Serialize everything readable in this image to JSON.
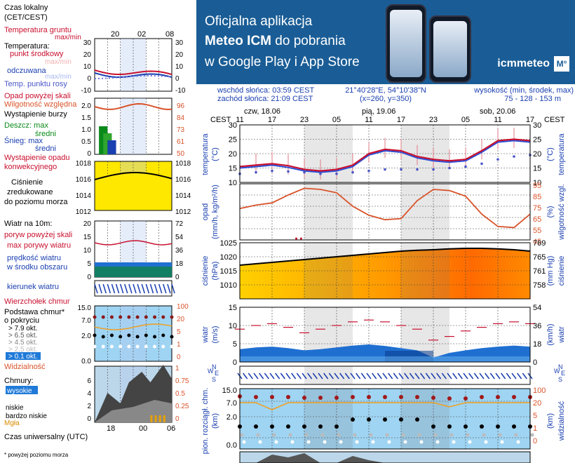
{
  "banner": {
    "line1": "Oficjalna aplikacja",
    "line2_bold": "Meteo ICM",
    "line2_rest": " do pobrania",
    "line3": "w Google Play i App Store",
    "brand": "icmmeteo",
    "badge": "M°"
  },
  "header": {
    "sunrise": "wschód słońca: 03:59 CEST",
    "sunset": "zachód słońca: 21:09 CEST",
    "coords": "21°40'28\"E, 54°10'38\"N",
    "grid": "(x=260, y=350)",
    "alt_label": "wysokość (min, środek, max)",
    "alt_values": "75 - 128 - 153 m"
  },
  "time_axis": {
    "zone": "CEST",
    "days": [
      "czw, 18.06",
      "pią, 19.06",
      "sob, 20.06"
    ],
    "hours": [
      "11",
      "17",
      "23",
      "05",
      "11",
      "17",
      "23",
      "05",
      "11",
      "17"
    ]
  },
  "legend": {
    "local_time": [
      "Czas lokalny",
      "(CET/CEST)"
    ],
    "local_hours": [
      "20",
      "02",
      "08"
    ],
    "soil_temp": [
      "Temperatura gruntu",
      "max/min"
    ],
    "temp_title": "Temperatura:",
    "temp_mid": "punkt środkowy",
    "temp_max_min": "max/min",
    "temp_feel": "odczuwana",
    "temp_feel_max_min": "max/min",
    "temp_dew": "Temp. punktu rosy",
    "temp_ticks": [
      "30",
      "20",
      "10",
      "0",
      "-10"
    ],
    "precip_over": "Opad powyżej skali",
    "humidity": "Wilgotność względna",
    "storm": "Wystąpienie burzy",
    "rain_max": "Deszcz: max",
    "rain_mid": "średni",
    "snow_max": "Śnieg: max",
    "snow_mid": "średni",
    "precip_event": [
      "Wystąpienie opadu",
      "konwekcyjnego"
    ],
    "precip_ticks": [
      "2.0",
      "1.5",
      "1.0",
      "0.5",
      "0"
    ],
    "hum_ticks": [
      "96",
      "84",
      "73",
      "61",
      "50"
    ],
    "pressure_title": [
      "Ciśnienie",
      "zredukowane",
      "do poziomu morza"
    ],
    "pressure_ticks": [
      "1018",
      "1016",
      "1014",
      "1012"
    ],
    "wind_title": "Wiatr na 10m:",
    "wind_gust_over": "poryw powyżej skali",
    "wind_gust_max": "max porywy wiatru",
    "wind_avg": [
      "prędkość wiatru",
      "w środku obszaru"
    ],
    "wind_ticks_ms": [
      "20",
      "15",
      "10",
      "5",
      "0"
    ],
    "wind_ticks_kmh": [
      "72",
      "54",
      "36",
      "18",
      "0"
    ],
    "wind_dir": "kierunek wiatru",
    "cloud_top": "Wierzchołek chmur",
    "cloud_base": [
      "Podstawa chmur*",
      "o pokryciu"
    ],
    "okt": [
      "> 7.9 okt.",
      "> 6.5 okt.",
      "> 4.5 okt.",
      "> 2.5 okt.",
      "> 0.1 okt."
    ],
    "cloud_ticks": [
      "15.0",
      "7.0",
      "2.0",
      "0.0"
    ],
    "cloud_top_ticks": [
      "100",
      "20",
      "5",
      "1",
      "0"
    ],
    "visibility": "Widzialność",
    "clouds_title": "Chmury:",
    "clouds_levels": [
      "wysokie",
      "średnie",
      "niskie",
      "bardzo niskie"
    ],
    "fog": "Mgła",
    "clouds_ticks": [
      "6",
      "4",
      "2",
      "0"
    ],
    "clouds_ticks_r": [
      "1",
      "0.75",
      "0.5",
      "0.25",
      "0"
    ],
    "utc": "Czas uniwersalny (UTC)",
    "utc_hours": [
      "18",
      "00",
      "06"
    ],
    "footnote": "* powyżej poziomu morza"
  },
  "panels": {
    "temp": {
      "ylabel": "temperatura",
      "unit": "(°C)",
      "ticks": [
        "30",
        "25",
        "20",
        "15",
        "10"
      ],
      "ylim": [
        10,
        30
      ]
    },
    "precip": {
      "ylabel": "opad",
      "unit": "(mm/h, kg/m²/h)",
      "ylabel_r": "wilgotność wzgl.",
      "unit_r": "(%)",
      "ticks_r": [
        "95",
        "85",
        "75",
        "65",
        "55",
        "45"
      ]
    },
    "pressure": {
      "ylabel": "ciśnienie",
      "unit": "(hPa)",
      "ylabel_r": "ciśnienie",
      "unit_r": "(mm Hg)",
      "ticks": [
        "1025",
        "1020",
        "1015",
        "1010"
      ],
      "ticks_r": [
        "769",
        "765",
        "761",
        "758"
      ],
      "ylim": [
        1005,
        1025
      ]
    },
    "wind": {
      "ylabel": "wiatr",
      "unit": "(m/s)",
      "unit_r": "(km/h)",
      "ticks": [
        "15",
        "10",
        "5",
        "0"
      ],
      "ticks_r": [
        "54",
        "36",
        "18",
        "0"
      ]
    },
    "wind_dir_letters": [
      "W",
      "N",
      "E",
      "S"
    ],
    "cloud": {
      "ylabel": "pion. rozciągł. chm.",
      "unit": "(km)",
      "ylabel_r": "widzialność",
      "unit_r": "(km)",
      "ticks": [
        "15.0",
        "7.0",
        "2.0",
        "0.0"
      ],
      "ticks_r": [
        "100",
        "20",
        "5",
        "1",
        "0"
      ]
    }
  },
  "chart_data": [
    {
      "type": "line",
      "title": "temperatura",
      "ylabel": "(°C)",
      "ylim": [
        10,
        30
      ],
      "x": [
        "11",
        "14",
        "17",
        "20",
        "23",
        "02",
        "05",
        "08",
        "11",
        "14",
        "17",
        "20",
        "23",
        "02",
        "05",
        "08",
        "11",
        "14",
        "17"
      ],
      "series": [
        {
          "name": "punkt środkowy",
          "values": [
            15.5,
            16,
            16.5,
            15.8,
            14.5,
            14,
            14.5,
            16,
            20,
            21.5,
            21,
            19,
            18,
            17.5,
            18,
            21,
            24.5,
            25,
            24.5
          ]
        },
        {
          "name": "odczuwana",
          "values": [
            15,
            15.5,
            16,
            15.2,
            14,
            13.5,
            14,
            15.5,
            19.5,
            21,
            20.5,
            18.5,
            17.5,
            17,
            17.5,
            20.5,
            24,
            24.5,
            24
          ]
        },
        {
          "name": "Temp. punktu rosy",
          "values": [
            13,
            13.5,
            14,
            13.8,
            13.5,
            13,
            13,
            13.5,
            14,
            14.5,
            14.5,
            14.5,
            14.5,
            15,
            15.5,
            16.5,
            18,
            19,
            19.5
          ]
        }
      ]
    },
    {
      "type": "line",
      "title": "opad / wilgotność",
      "ylabel": "(%)",
      "ylim": [
        45,
        95
      ],
      "x": [
        "11",
        "14",
        "17",
        "20",
        "23",
        "02",
        "05",
        "08",
        "11",
        "14",
        "17",
        "20",
        "23",
        "02",
        "05",
        "08",
        "11",
        "14",
        "17"
      ],
      "series": [
        {
          "name": "Wilgotność względna",
          "values": [
            73,
            76,
            78,
            85,
            91,
            90,
            87,
            75,
            67,
            63,
            64,
            80,
            90,
            89,
            84,
            68,
            57,
            56,
            68
          ]
        }
      ]
    },
    {
      "type": "area",
      "title": "ciśnienie",
      "ylabel": "(hPa)",
      "ylim": [
        1005,
        1025
      ],
      "x": [
        "11",
        "14",
        "17",
        "20",
        "23",
        "02",
        "05",
        "08",
        "11",
        "14",
        "17",
        "20",
        "23",
        "02",
        "05",
        "08",
        "11",
        "14",
        "17"
      ],
      "values": [
        1017,
        1017.5,
        1018,
        1018.5,
        1019,
        1019.5,
        1020,
        1020.5,
        1021,
        1021.5,
        1022,
        1022.3,
        1022.5,
        1022.8,
        1023,
        1023,
        1022.8,
        1022.5,
        1022
      ]
    },
    {
      "type": "area",
      "title": "wiatr",
      "ylabel": "(m/s)",
      "ylim": [
        0,
        15
      ],
      "x": [
        "11",
        "14",
        "17",
        "20",
        "23",
        "02",
        "05",
        "08",
        "11",
        "14",
        "17",
        "20",
        "23",
        "02",
        "05",
        "08",
        "11",
        "14",
        "17"
      ],
      "series": [
        {
          "name": "prędkość wiatru",
          "values": [
            3.5,
            4,
            4.2,
            3.8,
            3.2,
            3.5,
            4,
            4.5,
            4.8,
            4.4,
            3.8,
            3.2,
            1.2,
            2.5,
            3.2,
            3.8,
            4.2,
            4.5,
            4.2
          ]
        },
        {
          "name": "max porywy wiatru",
          "values": [
            9,
            10,
            10.5,
            9.5,
            8,
            9,
            10,
            11,
            11.5,
            11,
            10,
            9,
            6,
            7,
            8.5,
            9.5,
            10.5,
            11,
            10.5
          ]
        }
      ]
    }
  ],
  "colors": {
    "banner": "#1a5d96",
    "temp_line": "#c8102e",
    "dew": "#4a57c8",
    "humidity": "#d9532a",
    "pressure_yellow": "#ffe800",
    "pressure_orange": "#ff7a00",
    "wind_blue": "#1f6fd1",
    "wind_dark": "#0a3a8a",
    "cloud_bg": "#9fd4f2",
    "night": "#dcdcdc"
  }
}
